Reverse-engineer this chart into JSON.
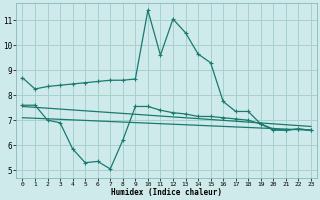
{
  "xlabel": "Humidex (Indice chaleur)",
  "bg_color": "#ceeaea",
  "grid_color": "#a8d0d0",
  "line_color": "#1a7a6e",
  "xlim": [
    -0.5,
    23.5
  ],
  "ylim": [
    4.7,
    11.7
  ],
  "yticks": [
    5,
    6,
    7,
    8,
    9,
    10,
    11
  ],
  "xticks": [
    0,
    1,
    2,
    3,
    4,
    5,
    6,
    7,
    8,
    9,
    10,
    11,
    12,
    13,
    14,
    15,
    16,
    17,
    18,
    19,
    20,
    21,
    22,
    23
  ],
  "curve1_x": [
    0,
    1,
    2,
    3,
    4,
    5,
    6,
    7,
    8,
    9,
    10,
    11,
    12,
    13,
    14,
    15,
    16,
    17,
    18,
    19,
    20,
    21,
    22,
    23
  ],
  "curve1_y": [
    8.7,
    8.25,
    8.35,
    8.4,
    8.45,
    8.5,
    8.55,
    8.6,
    8.6,
    8.65,
    11.4,
    9.6,
    11.05,
    10.5,
    9.65,
    9.3,
    7.75,
    7.35,
    7.35,
    6.85,
    6.6,
    6.6,
    6.65,
    6.6
  ],
  "curve2_x": [
    0,
    1,
    2,
    3,
    4,
    5,
    6,
    7,
    8,
    9,
    10,
    11,
    12,
    13,
    14,
    15,
    16,
    17,
    18,
    19,
    20,
    21,
    22,
    23
  ],
  "curve2_y": [
    7.6,
    7.6,
    7.0,
    6.9,
    5.85,
    5.3,
    5.35,
    5.05,
    6.2,
    7.55,
    7.55,
    7.4,
    7.3,
    7.25,
    7.15,
    7.15,
    7.1,
    7.05,
    7.0,
    6.85,
    6.65,
    6.6,
    6.65,
    6.6
  ],
  "line1_x": [
    0,
    23
  ],
  "line1_y": [
    7.55,
    6.75
  ],
  "line2_x": [
    0,
    23
  ],
  "line2_y": [
    7.1,
    6.6
  ]
}
